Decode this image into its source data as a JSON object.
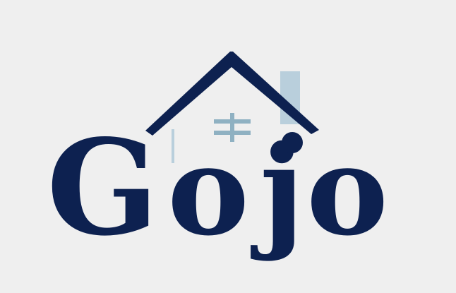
{
  "logo": {
    "brand_name": "Gojo",
    "letters": [
      "G",
      "o",
      "j",
      "o"
    ],
    "colors": {
      "background": "#efefef",
      "navy": "#0d2150",
      "pale_blue": "#b9cfdc",
      "window_blue": "#8fb1c2"
    }
  }
}
